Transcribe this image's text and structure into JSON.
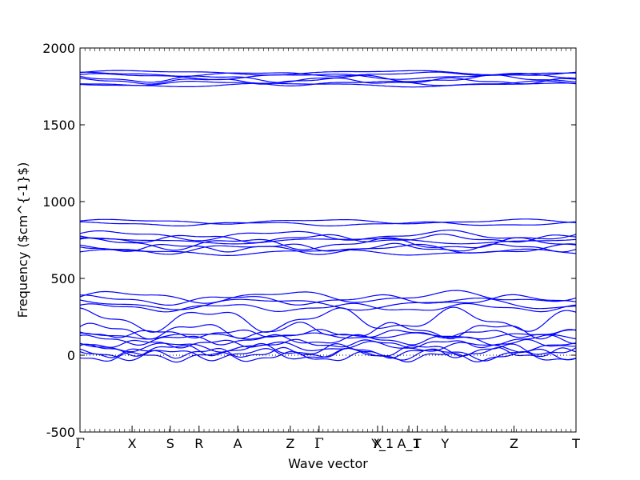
{
  "chart_data": {
    "type": "line",
    "title": "",
    "xlabel": "Wave vector",
    "ylabel": "Frequency ($cm^{-1}$)",
    "ylim": [
      -500,
      2000
    ],
    "xlim": [
      0,
      1
    ],
    "yticks": [
      -500,
      0,
      500,
      1000,
      1500,
      2000
    ],
    "grid": false,
    "legend": "none",
    "line_color": "#0000ff",
    "zero_line": {
      "y": 0,
      "style": "dotted",
      "color": "#000000"
    },
    "high_symmetry_points": [
      {
        "label": "Γ",
        "x": 0.0
      },
      {
        "label": "X",
        "x": 0.105
      },
      {
        "label": "S",
        "x": 0.182
      },
      {
        "label": "R",
        "x": 0.24
      },
      {
        "label": "A",
        "x": 0.318
      },
      {
        "label": "Z",
        "x": 0.424
      },
      {
        "label": "Γ",
        "x": 0.482
      },
      {
        "label": "X",
        "x": 0.6
      },
      {
        "label": "Y_1",
        "x": 0.61
      },
      {
        "label": "A_1",
        "x": 0.663
      },
      {
        "label": "T",
        "x": 0.68
      },
      {
        "label": "Y",
        "x": 0.736
      },
      {
        "label": "Z",
        "x": 0.875
      },
      {
        "label": "T",
        "x": 1.0
      }
    ],
    "bands": [
      {
        "base": 1840,
        "amp": 12,
        "freq": 2.0,
        "phase": 0.0
      },
      {
        "base": 1830,
        "amp": 10,
        "freq": 3.0,
        "phase": 1.0
      },
      {
        "base": 1815,
        "amp": 15,
        "freq": 2.5,
        "phase": 0.5
      },
      {
        "base": 1800,
        "amp": 18,
        "freq": 3.5,
        "phase": 2.0
      },
      {
        "base": 1785,
        "amp": 15,
        "freq": 4.0,
        "phase": 1.5
      },
      {
        "base": 1770,
        "amp": 12,
        "freq": 3.0,
        "phase": 3.0
      },
      {
        "base": 1760,
        "amp": 10,
        "freq": 2.0,
        "phase": 2.5
      },
      {
        "base": 870,
        "amp": 12,
        "freq": 2.5,
        "phase": 0.2
      },
      {
        "base": 855,
        "amp": 10,
        "freq": 3.0,
        "phase": 1.2
      },
      {
        "base": 780,
        "amp": 25,
        "freq": 3.0,
        "phase": 0.3
      },
      {
        "base": 760,
        "amp": 20,
        "freq": 4.0,
        "phase": 2.0
      },
      {
        "base": 745,
        "amp": 15,
        "freq": 2.0,
        "phase": 1.0
      },
      {
        "base": 725,
        "amp": 30,
        "freq": 3.5,
        "phase": 0.7
      },
      {
        "base": 700,
        "amp": 20,
        "freq": 4.5,
        "phase": 2.5
      },
      {
        "base": 690,
        "amp": 25,
        "freq": 3.0,
        "phase": 1.7
      },
      {
        "base": 670,
        "amp": 15,
        "freq": 2.5,
        "phase": 0.1
      },
      {
        "base": 380,
        "amp": 30,
        "freq": 3.0,
        "phase": 0.0
      },
      {
        "base": 360,
        "amp": 25,
        "freq": 3.5,
        "phase": 1.0
      },
      {
        "base": 335,
        "amp": 30,
        "freq": 2.5,
        "phase": 2.0
      },
      {
        "base": 310,
        "amp": 20,
        "freq": 4.0,
        "phase": 0.5
      },
      {
        "base": 230,
        "amp": 60,
        "freq": 4.0,
        "phase": 1.3
      },
      {
        "base": 160,
        "amp": 40,
        "freq": 5.0,
        "phase": 0.4
      },
      {
        "base": 140,
        "amp": 20,
        "freq": 6.0,
        "phase": 2.2
      },
      {
        "base": 125,
        "amp": 15,
        "freq": 4.5,
        "phase": 1.1
      },
      {
        "base": 100,
        "amp": 25,
        "freq": 5.5,
        "phase": 0.8
      },
      {
        "base": 75,
        "amp": 20,
        "freq": 6.5,
        "phase": 2.7
      },
      {
        "base": 55,
        "amp": 25,
        "freq": 5.0,
        "phase": 1.9
      },
      {
        "base": 35,
        "amp": 30,
        "freq": 6.0,
        "phase": 0.6
      },
      {
        "base": 15,
        "amp": 25,
        "freq": 7.0,
        "phase": 2.4
      },
      {
        "base": 5,
        "amp": 30,
        "freq": 5.5,
        "phase": 1.6
      },
      {
        "base": -10,
        "amp": 25,
        "freq": 6.5,
        "phase": 3.1
      }
    ]
  }
}
